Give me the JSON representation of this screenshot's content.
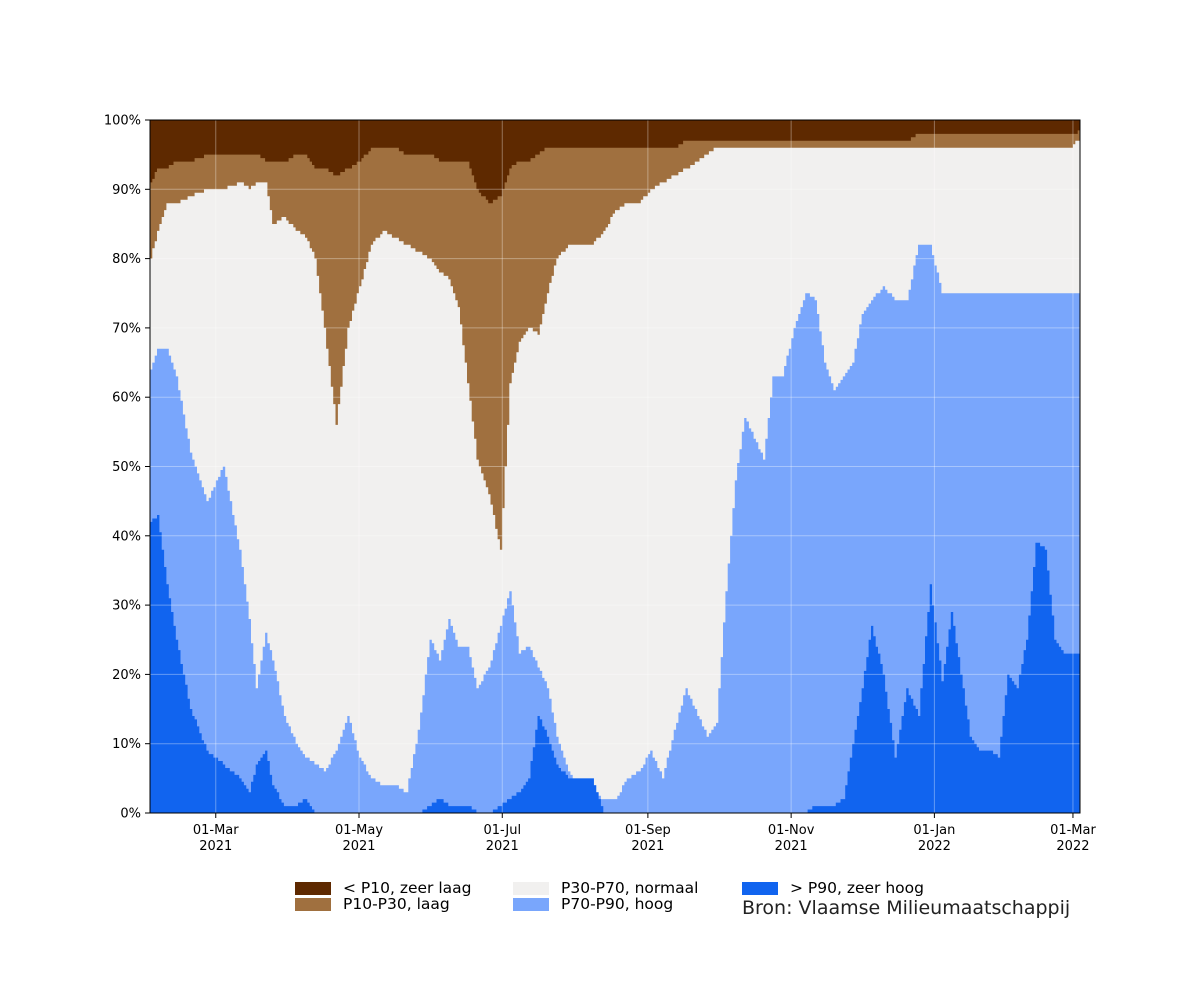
{
  "chart_data": {
    "type": "area",
    "stacked_percent": true,
    "x_start": "2021-02-01",
    "x_end": "2022-03-04",
    "ylim": [
      0,
      100
    ],
    "xtick_labels": [
      [
        "01-Mar",
        "2021"
      ],
      [
        "01-May",
        "2021"
      ],
      [
        "01-Jul",
        "2021"
      ],
      [
        "01-Sep",
        "2021"
      ],
      [
        "01-Nov",
        "2021"
      ],
      [
        "01-Jan",
        "2022"
      ],
      [
        "01-Mar",
        "2022"
      ]
    ],
    "xtick_dates": [
      "2021-03-01",
      "2021-05-01",
      "2021-07-01",
      "2021-09-01",
      "2021-11-01",
      "2022-01-01",
      "2022-03-01"
    ],
    "ytick_labels": [
      "0%",
      "10%",
      "20%",
      "30%",
      "40%",
      "50%",
      "60%",
      "70%",
      "80%",
      "90%",
      "100%"
    ],
    "grid": true,
    "legend_position": "bottom",
    "dates": [
      "2021-02-01",
      "2021-02-04",
      "2021-02-08",
      "2021-02-12",
      "2021-02-18",
      "2021-02-25",
      "2021-03-04",
      "2021-03-11",
      "2021-03-15",
      "2021-03-18",
      "2021-03-22",
      "2021-03-25",
      "2021-03-30",
      "2021-04-04",
      "2021-04-08",
      "2021-04-12",
      "2021-04-16",
      "2021-04-21",
      "2021-04-26",
      "2021-05-01",
      "2021-05-06",
      "2021-05-11",
      "2021-05-16",
      "2021-05-21",
      "2021-05-26",
      "2021-05-31",
      "2021-06-04",
      "2021-06-08",
      "2021-06-12",
      "2021-06-16",
      "2021-06-20",
      "2021-06-25",
      "2021-06-30",
      "2021-07-04",
      "2021-07-08",
      "2021-07-12",
      "2021-07-16",
      "2021-07-20",
      "2021-07-24",
      "2021-07-29",
      "2021-08-03",
      "2021-08-08",
      "2021-08-13",
      "2021-08-18",
      "2021-08-23",
      "2021-08-28",
      "2021-09-02",
      "2021-09-07",
      "2021-09-12",
      "2021-09-17",
      "2021-09-22",
      "2021-09-26",
      "2021-09-30",
      "2021-10-04",
      "2021-10-08",
      "2021-10-12",
      "2021-10-16",
      "2021-10-20",
      "2021-10-24",
      "2021-10-28",
      "2021-11-02",
      "2021-11-07",
      "2021-11-11",
      "2021-11-15",
      "2021-11-19",
      "2021-11-23",
      "2021-11-27",
      "2021-12-01",
      "2021-12-05",
      "2021-12-10",
      "2021-12-15",
      "2021-12-20",
      "2021-12-25",
      "2021-12-30",
      "2022-01-04",
      "2022-01-08",
      "2022-01-12",
      "2022-01-16",
      "2022-01-20",
      "2022-01-24",
      "2022-01-28",
      "2022-02-01",
      "2022-02-05",
      "2022-02-09",
      "2022-02-13",
      "2022-02-17",
      "2022-02-21",
      "2022-02-25",
      "2022-02-28",
      "2022-03-02",
      "2022-03-04"
    ],
    "cumulative_boundaries": {
      "above_p90_top": [
        42,
        43,
        33,
        25,
        15,
        9,
        7,
        5,
        3,
        7,
        9,
        4,
        1,
        1,
        2,
        0,
        0,
        0,
        0,
        0,
        0,
        0,
        0,
        0,
        0,
        1,
        2,
        1,
        1,
        1,
        0,
        0,
        1,
        2,
        3,
        5,
        14,
        11,
        7,
        5,
        5,
        5,
        0,
        0,
        0,
        0,
        0,
        0,
        0,
        0,
        0,
        0,
        0,
        0,
        0,
        0,
        0,
        0,
        0,
        0,
        0,
        0,
        1,
        1,
        1,
        2,
        10,
        18,
        27,
        20,
        8,
        18,
        14,
        33,
        19,
        29,
        20,
        11,
        9,
        9,
        8,
        20,
        18,
        25,
        39,
        38,
        25,
        23,
        23,
        23,
        23
      ],
      "above_p70_top": [
        64,
        67,
        67,
        63,
        52,
        45,
        50,
        38,
        28,
        18,
        26,
        22,
        14,
        10,
        8,
        7,
        6,
        9,
        14,
        8,
        5,
        4,
        4,
        3,
        12,
        25,
        22,
        28,
        24,
        24,
        18,
        21,
        27,
        32,
        23,
        24,
        21,
        18,
        11,
        6,
        4,
        3,
        2,
        2,
        5,
        6,
        9,
        5,
        12,
        18,
        14,
        11,
        13,
        32,
        48,
        57,
        54,
        51,
        63,
        63,
        70,
        75,
        74,
        65,
        61,
        63,
        65,
        72,
        74,
        76,
        74,
        74,
        82,
        82,
        75,
        75,
        75,
        75,
        75,
        75,
        75,
        75,
        75,
        75,
        75,
        75,
        75,
        75,
        75,
        75,
        75
      ],
      "above_p30_top": [
        80,
        84,
        88,
        88,
        89,
        90,
        90,
        91,
        90,
        91,
        91,
        85,
        86,
        84,
        83,
        80,
        70,
        56,
        70,
        76,
        82,
        84,
        83,
        82,
        81,
        80,
        78,
        77,
        73,
        62,
        51,
        46,
        38,
        62,
        68,
        70,
        69,
        75,
        80,
        82,
        82,
        82,
        84,
        87,
        88,
        88,
        90,
        91,
        92,
        93,
        94,
        95,
        96,
        96,
        96,
        96,
        96,
        96,
        96,
        96,
        96,
        96,
        96,
        96,
        96,
        96,
        96,
        96,
        96,
        96,
        96,
        96,
        96,
        96,
        96,
        96,
        96,
        96,
        96,
        96,
        96,
        96,
        96,
        96,
        96,
        96,
        96,
        96,
        96,
        97,
        97
      ],
      "above_p10_top": [
        91,
        93,
        93,
        94,
        94,
        95,
        95,
        95,
        95,
        95,
        94,
        94,
        94,
        95,
        95,
        93,
        93,
        92,
        93,
        94,
        96,
        96,
        96,
        95,
        95,
        95,
        94,
        94,
        94,
        94,
        90,
        88,
        89,
        93,
        94,
        94,
        95,
        96,
        96,
        96,
        96,
        96,
        96,
        96,
        96,
        96,
        96,
        96,
        96,
        97,
        97,
        97,
        97,
        97,
        97,
        97,
        97,
        97,
        97,
        97,
        97,
        97,
        97,
        97,
        97,
        97,
        97,
        97,
        97,
        97,
        97,
        97,
        98,
        98,
        98,
        98,
        98,
        98,
        98,
        98,
        98,
        98,
        98,
        98,
        98,
        98,
        98,
        98,
        98,
        98,
        99
      ]
    },
    "series": [
      {
        "name": "< P10, zeer laag",
        "color": "#5e2900"
      },
      {
        "name": "P10-P30, laag",
        "color": "#a0703f"
      },
      {
        "name": "P30-P70, normaal",
        "color": "#f1f0ef"
      },
      {
        "name": "P70-P90, hoog",
        "color": "#79a6fc"
      },
      {
        "name": "> P90, zeer hoog",
        "color": "#1164ef"
      }
    ],
    "source": "Bron: Vlaamse Milieumaatschappij"
  }
}
